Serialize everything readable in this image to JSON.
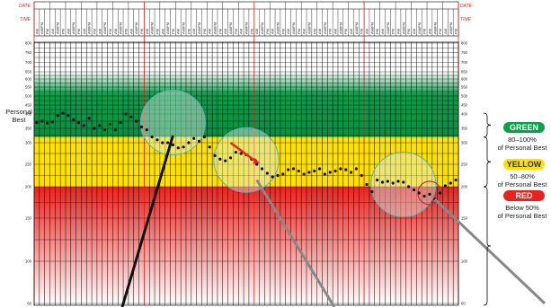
{
  "chart_data": {
    "type": "scatter",
    "header": {
      "date_label": "DATE",
      "time_label": "TIME",
      "slot_labels": [
        "AM",
        "AM/PM",
        "PM"
      ],
      "days": 27
    },
    "y_axis_label": "Personal Best",
    "y_ticks": [
      800,
      750,
      700,
      650,
      600,
      550,
      500,
      450,
      400,
      350,
      300,
      250,
      200,
      150,
      100,
      60
    ],
    "zones": [
      {
        "name": "GREEN",
        "range_text": "80–100%",
        "desc": "of Personal Best",
        "from": 320,
        "to": 650,
        "color": "#0a9f4a"
      },
      {
        "name": "YELLOW",
        "range_text": "50–80%",
        "desc": "of Personal Best",
        "from": 200,
        "to": 320,
        "color": "#ffe100"
      },
      {
        "name": "RED",
        "range_text": "Below 50%",
        "desc": "of Personal Best",
        "from": 60,
        "to": 200,
        "color": "#e8231f"
      }
    ],
    "points": [
      [
        0,
        370
      ],
      [
        1,
        375
      ],
      [
        2,
        368
      ],
      [
        3,
        372
      ],
      [
        4,
        395
      ],
      [
        5,
        405
      ],
      [
        6,
        395
      ],
      [
        7,
        380
      ],
      [
        8,
        370
      ],
      [
        9,
        360
      ],
      [
        10,
        385
      ],
      [
        11,
        350
      ],
      [
        12,
        360
      ],
      [
        13,
        345
      ],
      [
        14,
        365
      ],
      [
        15,
        345
      ],
      [
        16,
        370
      ],
      [
        17,
        400
      ],
      [
        18,
        390
      ],
      [
        19,
        375
      ],
      [
        20,
        355
      ],
      [
        21,
        345
      ],
      [
        22,
        320
      ],
      [
        23,
        310
      ],
      [
        24,
        300
      ],
      [
        25,
        300
      ],
      [
        26,
        295
      ],
      [
        27,
        288
      ],
      [
        28,
        290
      ],
      [
        29,
        300
      ],
      [
        30,
        315
      ],
      [
        31,
        305
      ],
      [
        32,
        320
      ],
      [
        33,
        290
      ],
      [
        34,
        270
      ],
      [
        35,
        262
      ],
      [
        36,
        258
      ],
      [
        37,
        265
      ],
      [
        38,
        278
      ],
      [
        39,
        275
      ],
      [
        40,
        272
      ],
      [
        41,
        262
      ],
      [
        42,
        250
      ],
      [
        43,
        240
      ],
      [
        44,
        230
      ],
      [
        45,
        222
      ],
      [
        46,
        225
      ],
      [
        47,
        228
      ],
      [
        48,
        238
      ],
      [
        49,
        240
      ],
      [
        50,
        235
      ],
      [
        51,
        228
      ],
      [
        52,
        232
      ],
      [
        53,
        235
      ],
      [
        54,
        240
      ],
      [
        55,
        228
      ],
      [
        56,
        232
      ],
      [
        57,
        235
      ],
      [
        58,
        240
      ],
      [
        59,
        238
      ],
      [
        60,
        232
      ],
      [
        61,
        240
      ],
      [
        62,
        225
      ],
      [
        63,
        205
      ],
      [
        64,
        192
      ],
      [
        65,
        215
      ],
      [
        66,
        210
      ],
      [
        67,
        212
      ],
      [
        68,
        208
      ],
      [
        69,
        212
      ],
      [
        70,
        210
      ],
      [
        71,
        200
      ],
      [
        72,
        195
      ],
      [
        73,
        190
      ],
      [
        74,
        185
      ],
      [
        75,
        188
      ],
      [
        76,
        180
      ],
      [
        77,
        190
      ],
      [
        78,
        202
      ],
      [
        79,
        208
      ],
      [
        80,
        215
      ]
    ],
    "highlights": [
      {
        "cx": 26,
        "cy": 370,
        "r": 36,
        "label": "circle-1"
      },
      {
        "cx": 40,
        "cy": 260,
        "r": 36,
        "label": "circle-2"
      },
      {
        "cx": 70,
        "cy": 205,
        "r": 36,
        "label": "circle-3"
      },
      {
        "cx": 75,
        "cy": 190,
        "r": 13,
        "label": "circle-small"
      }
    ],
    "colors": {
      "green": "#0a9f4a",
      "yellow": "#ffe100",
      "red": "#e8231f",
      "grid": "#000000",
      "marker": "#111111",
      "accent_line": "#e8231f"
    }
  }
}
